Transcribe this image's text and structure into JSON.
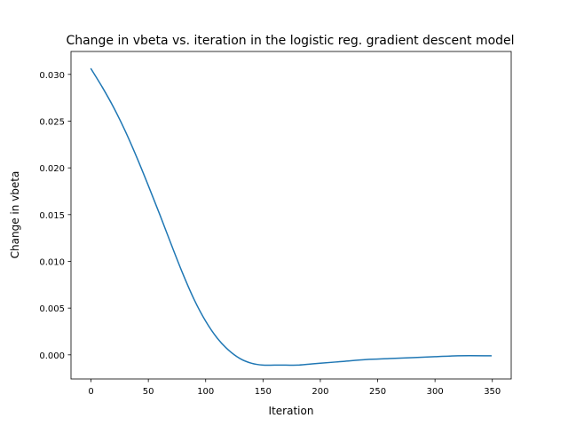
{
  "chart_data": {
    "type": "line",
    "title": "Change in vbeta vs. iteration in the logistic reg. gradient descent model",
    "xlabel": "Iteration",
    "ylabel": "Change in vbeta",
    "xlim": [
      -17.45,
      366.45
    ],
    "ylim": [
      -0.00258,
      0.03245
    ],
    "grid": false,
    "x_ticks": [
      0,
      50,
      100,
      150,
      200,
      250,
      300,
      350
    ],
    "y_ticks": [
      0.0,
      0.005,
      0.01,
      0.015,
      0.02,
      0.025,
      0.03
    ],
    "x_tick_labels": [
      "0",
      "50",
      "100",
      "150",
      "200",
      "250",
      "300",
      "350"
    ],
    "y_tick_labels": [
      "0.000",
      "0.005",
      "0.010",
      "0.015",
      "0.020",
      "0.025",
      "0.030"
    ],
    "line_color": "#1f77b4",
    "series": [
      {
        "x": [
          0,
          10,
          20,
          30,
          40,
          50,
          60,
          70,
          80,
          90,
          100,
          110,
          120,
          130,
          140,
          150,
          160,
          170,
          180,
          190,
          200,
          220,
          240,
          260,
          280,
          300,
          320,
          349
        ],
        "values": [
          0.0306,
          0.0286,
          0.0264,
          0.0239,
          0.0211,
          0.0181,
          0.015,
          0.0118,
          0.0087,
          0.0059,
          0.0036,
          0.0018,
          0.0005,
          -0.0004,
          -0.0009,
          -0.0011,
          -0.0011,
          -0.0011,
          -0.0011,
          -0.001,
          -0.0009,
          -0.0007,
          -0.0005,
          -0.0004,
          -0.0003,
          -0.0002,
          -0.0001,
          -0.0001
        ]
      }
    ]
  }
}
